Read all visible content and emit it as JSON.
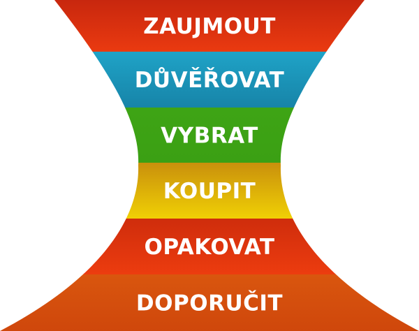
{
  "diagram": {
    "stages": [
      {
        "label": "ZAUJMOUT",
        "color_top": "#c8270e",
        "color_bottom": "#ea3a10"
      },
      {
        "label": "DŮVĚŘOVAT",
        "color_top": "#1fa3c7",
        "color_bottom": "#1784a8"
      },
      {
        "label": "VYBRAT",
        "color_top": "#3ea415",
        "color_bottom": "#3ba014"
      },
      {
        "label": "KOUPIT",
        "color_top": "#c9900c",
        "color_bottom": "#f0d005"
      },
      {
        "label": "OPAKOVAT",
        "color_top": "#cf2d0c",
        "color_bottom": "#ec3c0f"
      },
      {
        "label": "DOPORUČIT",
        "color_top": "#d9560e",
        "color_bottom": "#cf470c"
      }
    ]
  }
}
